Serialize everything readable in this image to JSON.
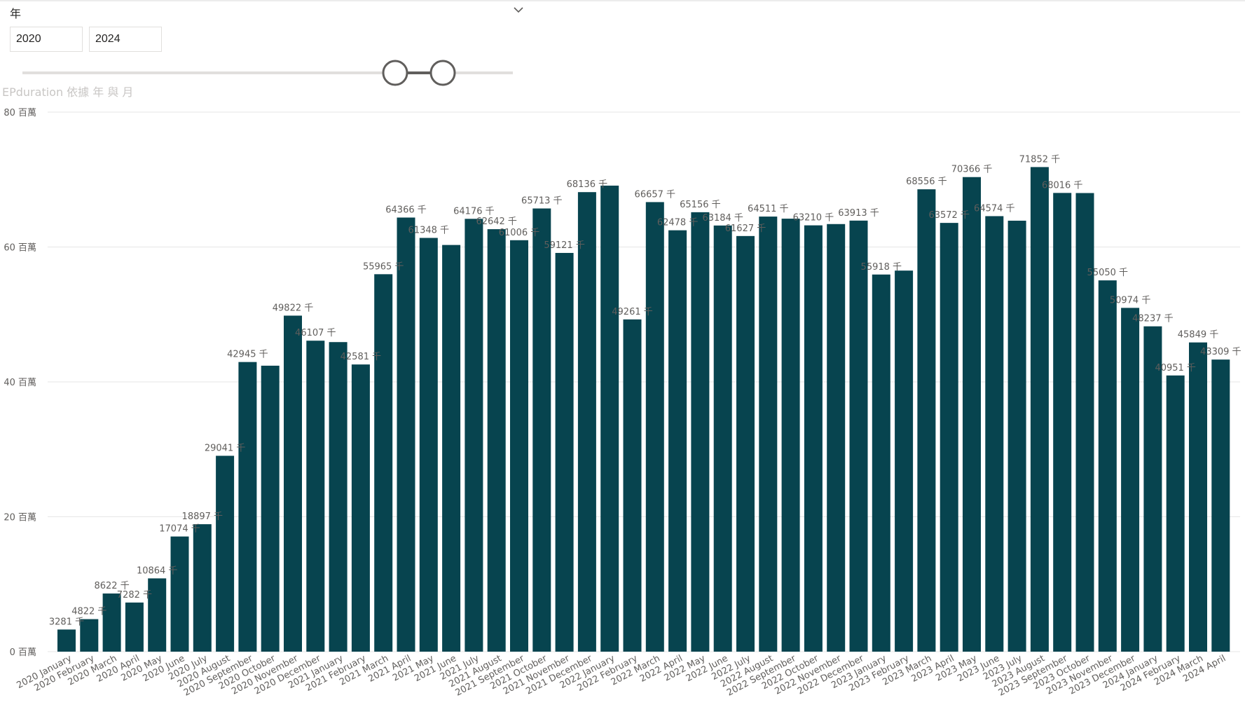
{
  "slicer": {
    "title": "年",
    "start_value": "2020",
    "end_value": "2024",
    "icon": "chevron-down-icon"
  },
  "chart_data": {
    "type": "bar",
    "title": "EPduration 依據 年 與 月",
    "color": "#07444f",
    "ylim": [
      0,
      80000000
    ],
    "yticks": [
      {
        "value": 0,
        "label": "0 百萬"
      },
      {
        "value": 20000000,
        "label": "20 百萬"
      },
      {
        "value": 40000000,
        "label": "40 百萬"
      },
      {
        "value": 60000000,
        "label": "60 百萬"
      },
      {
        "value": 80000000,
        "label": "80 百萬"
      }
    ],
    "grid": true,
    "categories": [
      "2020 January",
      "2020 February",
      "2020 March",
      "2020 April",
      "2020 May",
      "2020 June",
      "2020 July",
      "2020 August",
      "2020 September",
      "2020 October",
      "2020 November",
      "2020 December",
      "2021 January",
      "2021 February",
      "2021 March",
      "2021 April",
      "2021 May",
      "2021 June",
      "2021 July",
      "2021 August",
      "2021 September",
      "2021 October",
      "2021 November",
      "2021 December",
      "2022 January",
      "2022 February",
      "2022 March",
      "2022 April",
      "2022 May",
      "2022 June",
      "2022 July",
      "2022 August",
      "2022 September",
      "2022 October",
      "2022 November",
      "2022 December",
      "2023 January",
      "2023 February",
      "2023 March",
      "2023 April",
      "2023 May",
      "2023 June",
      "2023 July",
      "2023 August",
      "2023 September",
      "2023 October",
      "2023 November",
      "2023 December",
      "2024 January",
      "2024 February",
      "2024 March",
      "2024 April"
    ],
    "values": [
      3281000,
      4822000,
      8622000,
      7282000,
      10864000,
      17074000,
      18897000,
      29041000,
      42945000,
      42400000,
      49822000,
      46107000,
      45900000,
      42581000,
      55965000,
      64366000,
      61348000,
      60300000,
      64176000,
      62642000,
      61006000,
      65713000,
      59121000,
      68136000,
      69100000,
      49261000,
      66657000,
      62478000,
      65156000,
      63184000,
      61627000,
      64511000,
      64200000,
      63210000,
      63400000,
      63913000,
      55918000,
      56500000,
      68556000,
      63572000,
      70366000,
      64574000,
      63900000,
      71852000,
      68016000,
      68000000,
      55050000,
      50974000,
      48237000,
      40951000,
      45849000,
      43309000
    ],
    "labels": [
      "3281 千",
      "4822 千",
      "8622 千",
      "7282 千",
      "10864 千",
      "17074 千",
      "18897 千",
      "29041 千",
      "42945 千",
      "",
      "49822 千",
      "46107 千",
      "",
      "42581 千",
      "55965 千",
      "64366 千",
      "61348 千",
      "",
      "64176 千",
      "62642 千",
      "61006 千",
      "65713 千",
      "59121 千",
      "68136 千",
      "",
      "49261 千",
      "66657 千",
      "62478 千",
      "65156 千",
      "63184 千",
      "61627 千",
      "64511 千",
      "",
      "63210 千",
      "",
      "63913 千",
      "55918 千",
      "",
      "68556 千",
      "63572 千",
      "70366 千",
      "64574 千",
      "",
      "71852 千",
      "68016 千",
      "",
      "55050 千",
      "50974 千",
      "48237 千",
      "40951 千",
      "45849 千",
      "43309 千"
    ]
  }
}
